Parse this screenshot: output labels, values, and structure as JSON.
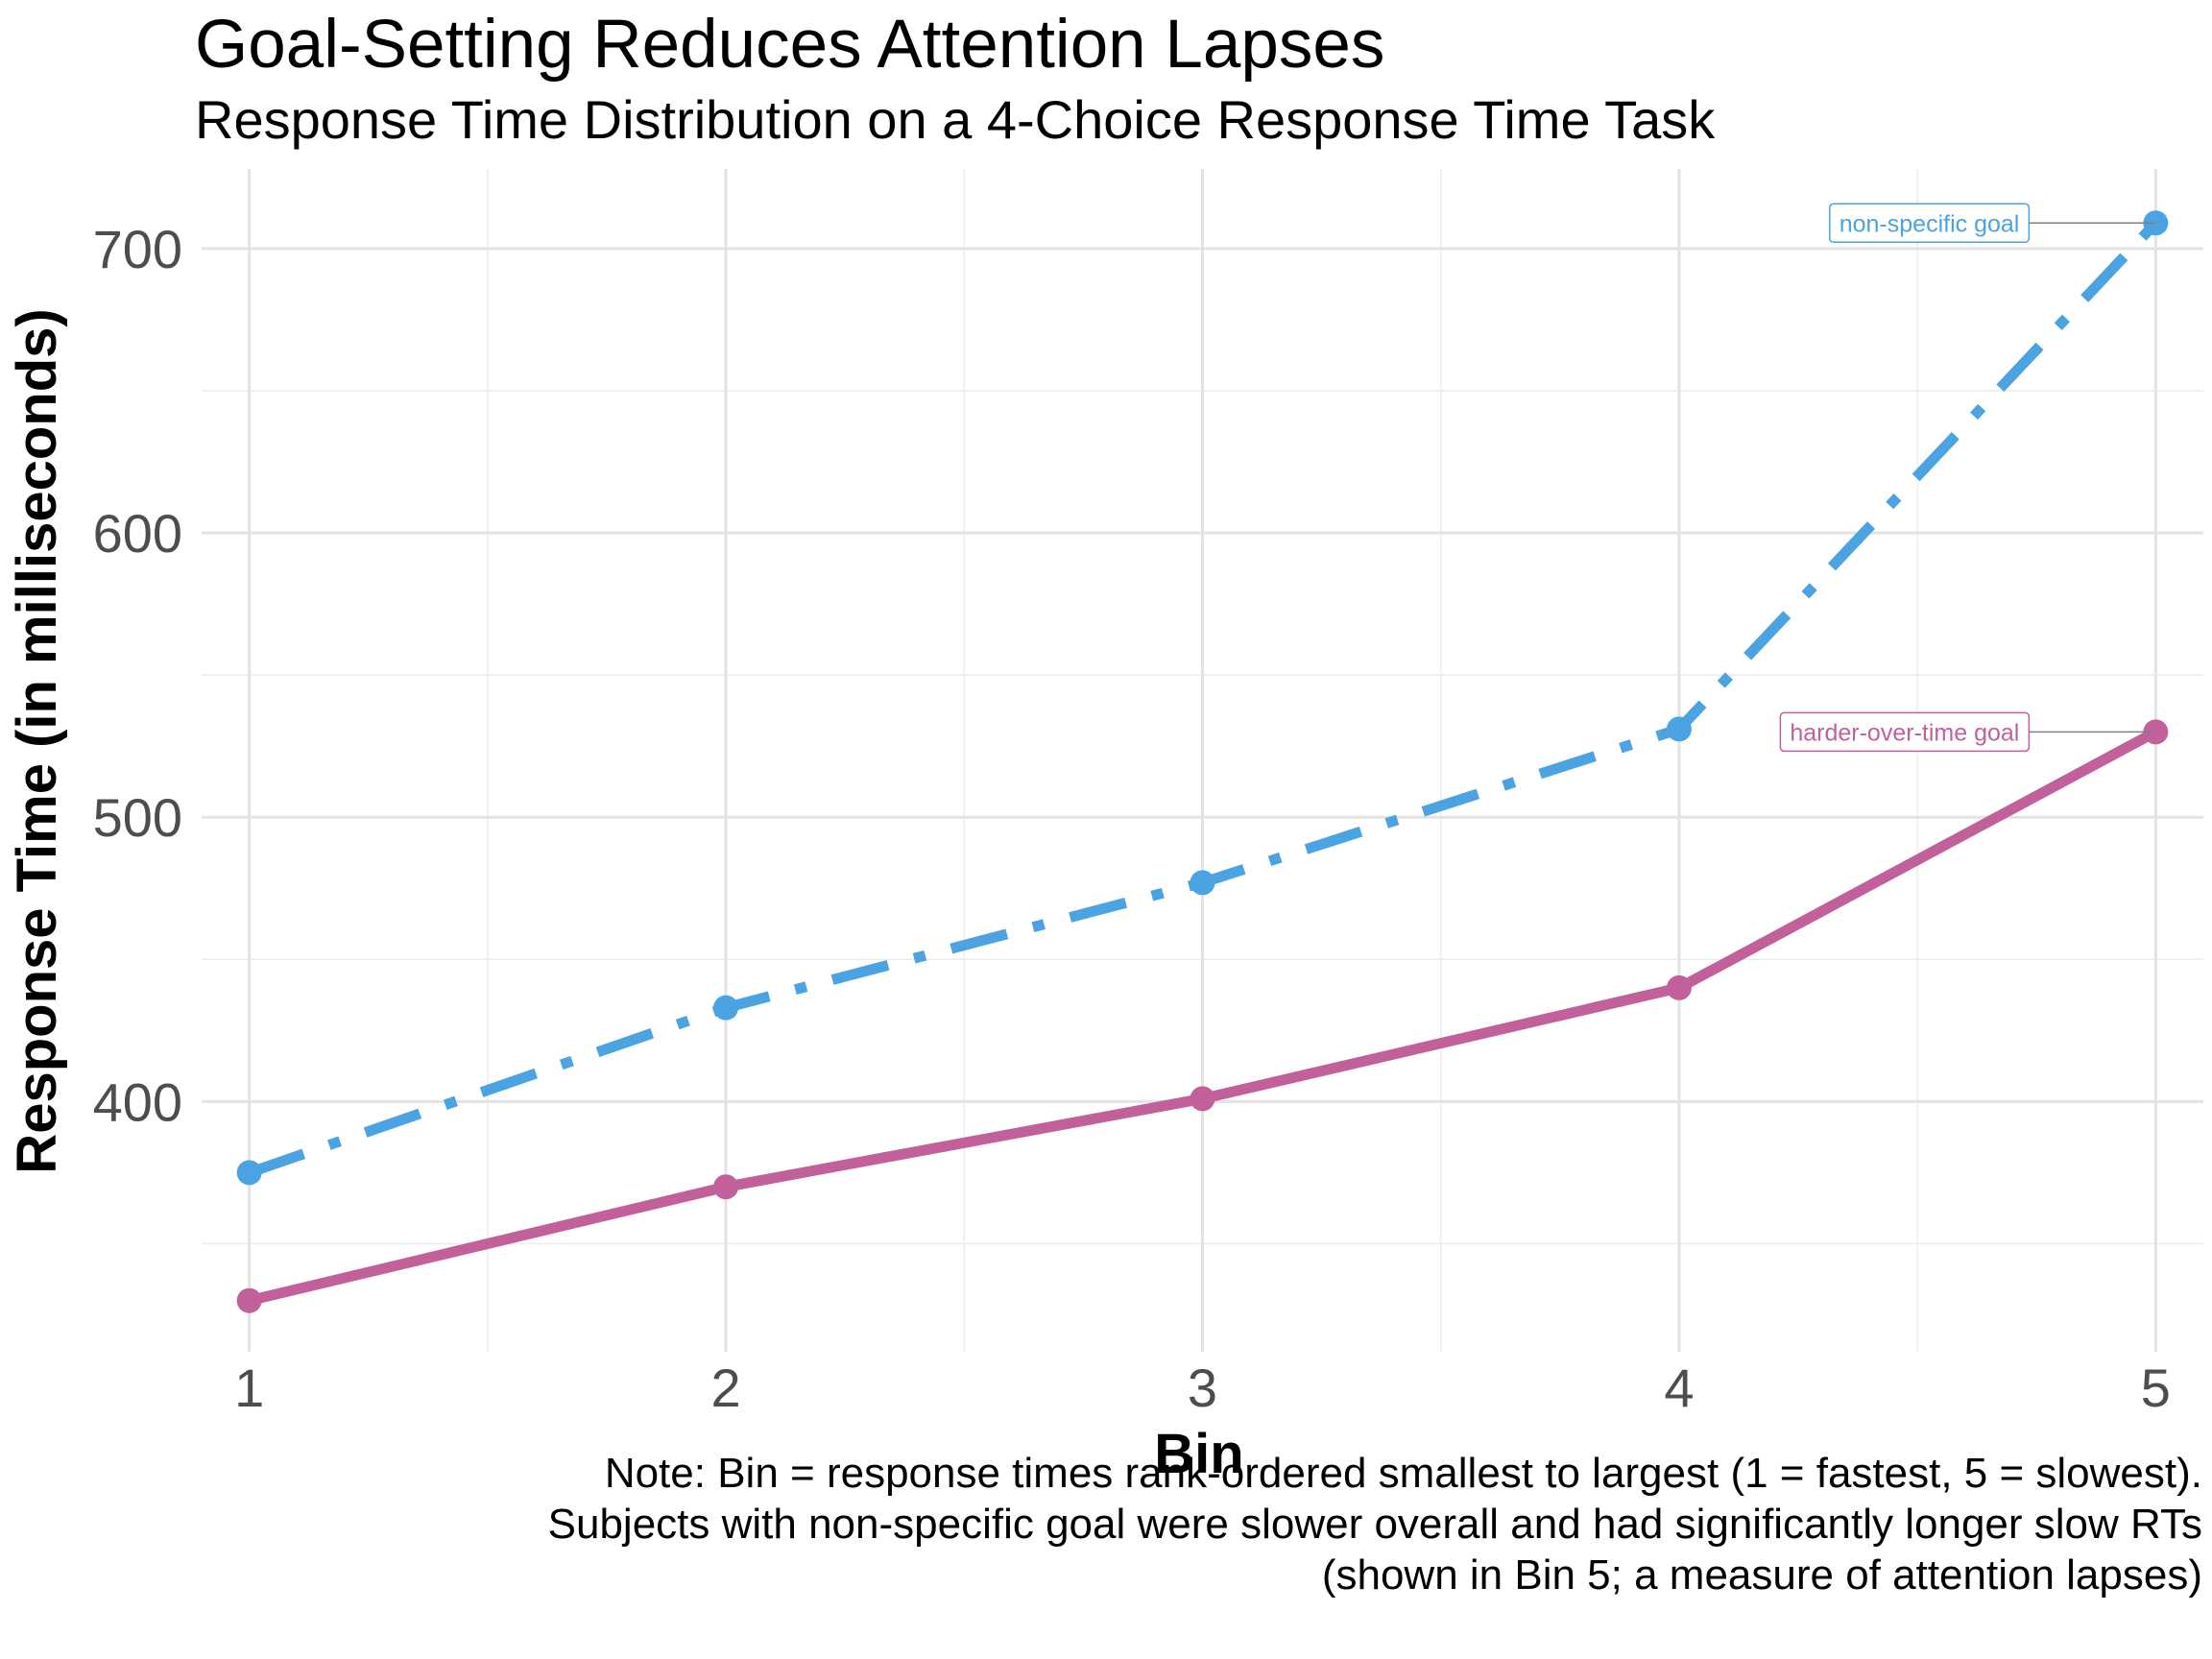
{
  "chart_data": {
    "type": "line",
    "title": "Goal-Setting Reduces Attention Lapses",
    "subtitle": "Response Time Distribution on a 4-Choice Response Time Task",
    "xlabel": "Bin",
    "ylabel": "Response Time (in milliseconds)",
    "x": [
      1,
      2,
      3,
      4,
      5
    ],
    "xlim": [
      0.9,
      5.1
    ],
    "ylim": [
      312,
      728
    ],
    "y_ticks": [
      400,
      500,
      600,
      700
    ],
    "grid": true,
    "legend": "none",
    "series": [
      {
        "name": "non-specific goal",
        "values": [
          375,
          433,
          477,
          531,
          709
        ],
        "color": "#4ba3e1",
        "line_style": "dashdot"
      },
      {
        "name": "harder-over-time goal",
        "values": [
          330,
          370,
          401,
          440,
          530
        ],
        "color": "#c1609a",
        "line_style": "solid"
      }
    ],
    "caption": [
      "Note: Bin = response times rank-ordered smallest to largest (1 = fastest, 5 = slowest).",
      "Subjects with non-specific goal were slower overall and had significantly longer slow RTs",
      "(shown in Bin 5; a measure of attention lapses)"
    ]
  }
}
